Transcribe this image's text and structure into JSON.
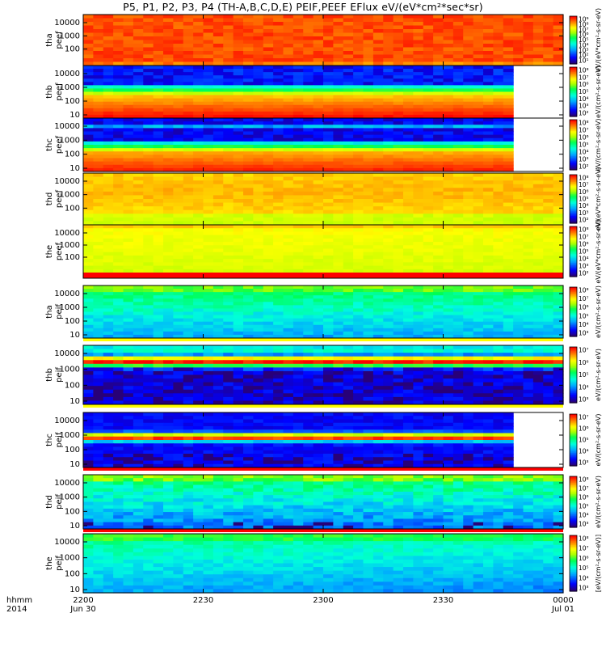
{
  "page_title": "P5, P1, P2, P3, P4 (TH-A,B,C,D,E) PEIF,PEEF EFlux eV/(eV*cm²*sec*sr)",
  "colors": {
    "white_gap": "#ffffff",
    "red_band": "#ff0000",
    "yellow_band": "#ffff00"
  },
  "chart_data": {
    "type": "heatmap",
    "title": "P5, P1, P2, P3, P4 (TH-A,B,C,D,E) PEIF,PEEF EFlux eV/(eV*cm²*sec*sr)",
    "x_axis": {
      "row1_label": "hhmm",
      "row2_label": "2014",
      "ticks": [
        {
          "time": "2200",
          "date": "Jun 30"
        },
        {
          "time": "2230",
          "date": ""
        },
        {
          "time": "2300",
          "date": ""
        },
        {
          "time": "2330",
          "date": ""
        },
        {
          "time": "0000",
          "date": "Jul 01"
        }
      ]
    },
    "panels": [
      {
        "probe": "tha",
        "product": "peef",
        "ylabels": [
          "10000",
          "1000",
          "100"
        ],
        "clabels": [
          "10⁹",
          "10⁸",
          "10⁷",
          "10⁶",
          "10⁵",
          "10⁴",
          "10³",
          "10²",
          "10¹"
        ],
        "ctitle": "eV/(eV*cm²-s-sr-eV)",
        "scheme": "red",
        "data_end": 1.0,
        "bottom_band": "none",
        "rows": 14
      },
      {
        "probe": "thb",
        "product": "peef",
        "ylabels": [
          "10000",
          "1000",
          "100",
          "10"
        ],
        "clabels": [
          "10⁸",
          "10⁷",
          "10⁶",
          "10⁵",
          "10⁴",
          "10³",
          "10²"
        ],
        "ctitle": "eV/(cm²-s-sr-eV)",
        "scheme": "thb_e",
        "data_end": 0.9,
        "bottom_band": "none",
        "rows": 16
      },
      {
        "probe": "thc",
        "product": "peef",
        "ylabels": [
          "10000",
          "1000",
          "100",
          "10"
        ],
        "clabels": [
          "10⁸",
          "10⁷",
          "10⁶",
          "10⁵",
          "10⁴",
          "10³",
          "10²"
        ],
        "ctitle": "eV/(cm²-s-sr-eV)",
        "scheme": "thc_e",
        "data_end": 0.9,
        "bottom_band": "none",
        "rows": 16
      },
      {
        "probe": "thd",
        "product": "peef",
        "ylabels": [
          "10000",
          "1000",
          "100"
        ],
        "clabels": [
          "10⁸",
          "10⁷",
          "10⁶",
          "10⁵",
          "10⁴",
          "10³",
          "10²"
        ],
        "ctitle": "eV/(eV*cm²-s-sr-eV)",
        "scheme": "orange",
        "data_end": 1.0,
        "bottom_band": "none",
        "rows": 14
      },
      {
        "probe": "the",
        "product": "peef",
        "ylabels": [
          "10000",
          "1000",
          "100"
        ],
        "clabels": [
          "10⁸",
          "10⁷",
          "10⁶",
          "10⁵",
          "10⁴",
          "10³",
          "10²"
        ],
        "ctitle": "eV/(eV*cm²-s-sr-eV)",
        "scheme": "yellow",
        "data_end": 1.0,
        "bottom_band": "red",
        "rows": 14
      },
      {
        "probe": "tha",
        "product": "peif",
        "ylabels": [
          "10000",
          "1000",
          "100",
          "10"
        ],
        "clabels": [
          "10⁸",
          "10⁷",
          "10⁶",
          "10⁵",
          "10⁴",
          "10³"
        ],
        "ctitle": "eV/(cm²-s-sr-eV)",
        "scheme": "ion_green",
        "data_end": 1.0,
        "bottom_band": "yellow",
        "rows": 16
      },
      {
        "probe": "thb",
        "product": "peif",
        "ylabels": [
          "10000",
          "1000",
          "100",
          "10"
        ],
        "clabels": [
          "10⁷",
          "10⁶",
          "10⁵",
          "10⁴",
          "10³"
        ],
        "ctitle": "eV/(cm²-s-sr-eV)",
        "scheme": "thb_i",
        "data_end": 1.0,
        "bottom_band": "yellow",
        "rows": 16
      },
      {
        "probe": "thc",
        "product": "peif",
        "ylabels": [
          "10000",
          "1000",
          "100",
          "10"
        ],
        "clabels": [
          "10⁷",
          "10⁶",
          "10⁵",
          "10⁴",
          "10³"
        ],
        "ctitle": "eV/(cm²-s-sr-eV)",
        "scheme": "thc_i",
        "data_end": 0.9,
        "bottom_band": "red",
        "rows": 16
      },
      {
        "probe": "thd",
        "product": "peif",
        "ylabels": [
          "10000",
          "1000",
          "100",
          "10"
        ],
        "clabels": [
          "10⁸",
          "10⁷",
          "10⁶",
          "10⁵",
          "10⁴",
          "10³"
        ],
        "ctitle": "eV/(cm²-s-sr-eV)",
        "scheme": "ion_green2",
        "data_end": 1.0,
        "bottom_band": "red",
        "rows": 16
      },
      {
        "probe": "the",
        "product": "peif",
        "ylabels": [
          "10000",
          "1000",
          "100",
          "10"
        ],
        "clabels": [
          "10⁸",
          "10⁷",
          "10⁶",
          "10⁵",
          "10⁴",
          "10³"
        ],
        "ctitle": "[eV/(cm²-s-sr-eV)]",
        "scheme": "ion_green3",
        "data_end": 1.0,
        "bottom_band": "none",
        "rows": 16
      }
    ]
  }
}
